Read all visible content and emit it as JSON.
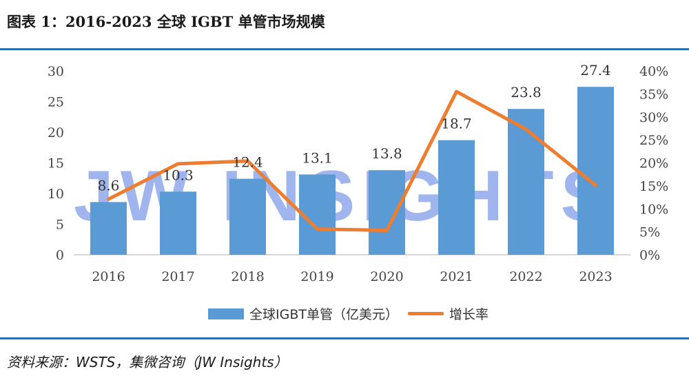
{
  "title": "图表 1：2016-2023 全球 IGBT 单管市场规模",
  "source": "资料来源：WSTS，集微咨询（JW Insights）",
  "watermark": "JW INSIGHTS",
  "colors": {
    "bar": "#5b9bd5",
    "line": "#ed7d31",
    "rule": "#2f6db5",
    "watermark": "#2d5bd8"
  },
  "chart_data": {
    "type": "bar",
    "categories": [
      "2016",
      "2017",
      "2018",
      "2019",
      "2020",
      "2021",
      "2022",
      "2023"
    ],
    "series": [
      {
        "name": "全球IGBT单管（亿美元）",
        "type": "bar",
        "axis": "left",
        "values": [
          8.6,
          10.3,
          12.4,
          13.1,
          13.8,
          18.7,
          23.8,
          27.4
        ],
        "labels": [
          "8.6",
          "10.3",
          "12.4",
          "13.1",
          "13.8",
          "18.7",
          "23.8",
          "27.4"
        ]
      },
      {
        "name": "增长率",
        "type": "line",
        "axis": "right",
        "values": [
          12.1,
          19.8,
          20.4,
          5.6,
          5.3,
          35.5,
          27.3,
          15.1
        ]
      }
    ],
    "y_left": {
      "ylim": [
        0,
        30
      ],
      "ticks": [
        "0",
        "5",
        "10",
        "15",
        "20",
        "25",
        "30"
      ]
    },
    "y_right": {
      "ylim": [
        0,
        40
      ],
      "ticks": [
        "0%",
        "5%",
        "10%",
        "15%",
        "20%",
        "25%",
        "30%",
        "35%",
        "40%"
      ]
    },
    "grid": false,
    "legend": "bottom"
  }
}
